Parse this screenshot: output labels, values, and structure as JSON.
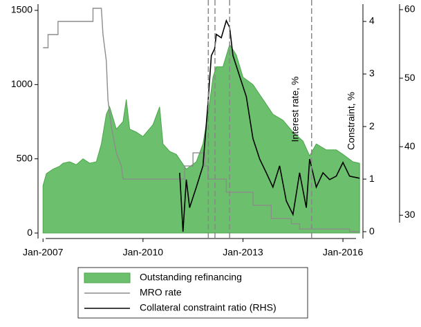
{
  "chart_data": {
    "type": "line",
    "xlim": [
      2006.85,
      2016.6
    ],
    "xticks": [
      {
        "value": 2007,
        "label": "Jan-2007"
      },
      {
        "value": 2010,
        "label": "Jan-2010"
      },
      {
        "value": 2013,
        "label": "Jan-2013"
      },
      {
        "value": 2016,
        "label": "Jan-2016"
      }
    ],
    "ylim": [
      -37,
      1514
    ],
    "yticks": [
      0,
      500,
      1000,
      1500
    ],
    "y2lim": [
      -0.13,
      4.25
    ],
    "y2ticks": [
      0,
      1,
      2,
      3,
      4
    ],
    "y2label": "Interest rate, %",
    "y3lim": [
      26.6,
      60.2
    ],
    "y3ticks": [
      30,
      40,
      50,
      60
    ],
    "y3label": "Constraint, %",
    "vlines": [
      2011.96,
      2012.16,
      2012.6,
      2015.06
    ],
    "series": [
      {
        "name": "Outstanding refinancing",
        "kind": "area",
        "color": "#6cbf6c",
        "axis": "y",
        "x": [
          2007.0,
          2007.1,
          2007.3,
          2007.5,
          2007.6,
          2007.8,
          2008.0,
          2008.2,
          2008.4,
          2008.6,
          2008.75,
          2008.9,
          2009.0,
          2009.2,
          2009.4,
          2009.5,
          2009.6,
          2009.8,
          2010.0,
          2010.3,
          2010.5,
          2010.6,
          2010.8,
          2011.0,
          2011.3,
          2011.6,
          2011.8,
          2011.95,
          2012.1,
          2012.2,
          2012.4,
          2012.6,
          2012.8,
          2013.0,
          2013.3,
          2013.6,
          2013.9,
          2014.2,
          2014.5,
          2014.8,
          2015.0,
          2015.2,
          2015.5,
          2015.8,
          2016.0,
          2016.3,
          2016.5
        ],
        "values": [
          320,
          400,
          430,
          450,
          470,
          480,
          460,
          500,
          470,
          480,
          600,
          800,
          850,
          700,
          750,
          900,
          700,
          680,
          650,
          730,
          850,
          600,
          550,
          530,
          430,
          480,
          600,
          800,
          1050,
          1120,
          1120,
          1270,
          1200,
          1050,
          1000,
          900,
          800,
          760,
          680,
          620,
          520,
          600,
          560,
          560,
          530,
          480,
          470
        ]
      },
      {
        "name": "MRO rate",
        "kind": "line",
        "color": "#8c8c8c",
        "axis": "y2",
        "x": [
          2007.0,
          2007.15,
          2007.15,
          2007.45,
          2007.45,
          2008.5,
          2008.5,
          2008.75,
          2008.8,
          2008.9,
          2008.95,
          2009.05,
          2009.2,
          2009.35,
          2009.4,
          2011.25,
          2011.25,
          2011.5,
          2011.5,
          2011.85,
          2011.85,
          2011.95,
          2011.95,
          2012.5,
          2012.5,
          2013.3,
          2013.3,
          2013.85,
          2013.85,
          2014.45,
          2014.45,
          2014.7,
          2014.7,
          2016.2,
          2016.2,
          2016.5
        ],
        "values": [
          3.5,
          3.5,
          3.75,
          3.75,
          4.0,
          4.0,
          4.25,
          4.25,
          3.75,
          3.25,
          2.5,
          2.0,
          1.5,
          1.25,
          1.0,
          1.0,
          1.25,
          1.25,
          1.5,
          1.5,
          1.25,
          1.25,
          1.0,
          1.0,
          0.75,
          0.75,
          0.5,
          0.5,
          0.25,
          0.25,
          0.15,
          0.15,
          0.05,
          0.05,
          0,
          0
        ]
      },
      {
        "name": "Collateral constraint ratio (RHS)",
        "kind": "line",
        "color": "#000000",
        "axis": "y3",
        "x": [
          2011.1,
          2011.2,
          2011.3,
          2011.4,
          2011.6,
          2011.8,
          2011.95,
          2012.05,
          2012.15,
          2012.2,
          2012.35,
          2012.5,
          2012.6,
          2012.7,
          2012.9,
          2013.1,
          2013.3,
          2013.5,
          2013.7,
          2013.9,
          2014.1,
          2014.3,
          2014.5,
          2014.7,
          2014.9,
          2015.0,
          2015.2,
          2015.4,
          2015.6,
          2015.8,
          2016.0,
          2016.2,
          2016.5
        ],
        "values": [
          36.2,
          27.6,
          35.2,
          31.1,
          34.1,
          37.2,
          46.3,
          53.3,
          54.3,
          56.4,
          55.9,
          58.4,
          57.4,
          53.3,
          50.3,
          47.3,
          41.2,
          38.2,
          36.2,
          34.1,
          37.2,
          32.1,
          30.1,
          36.2,
          31.1,
          38.2,
          34.1,
          36.2,
          35.2,
          35.7,
          37.7,
          35.7,
          35.4
        ]
      }
    ]
  }
}
